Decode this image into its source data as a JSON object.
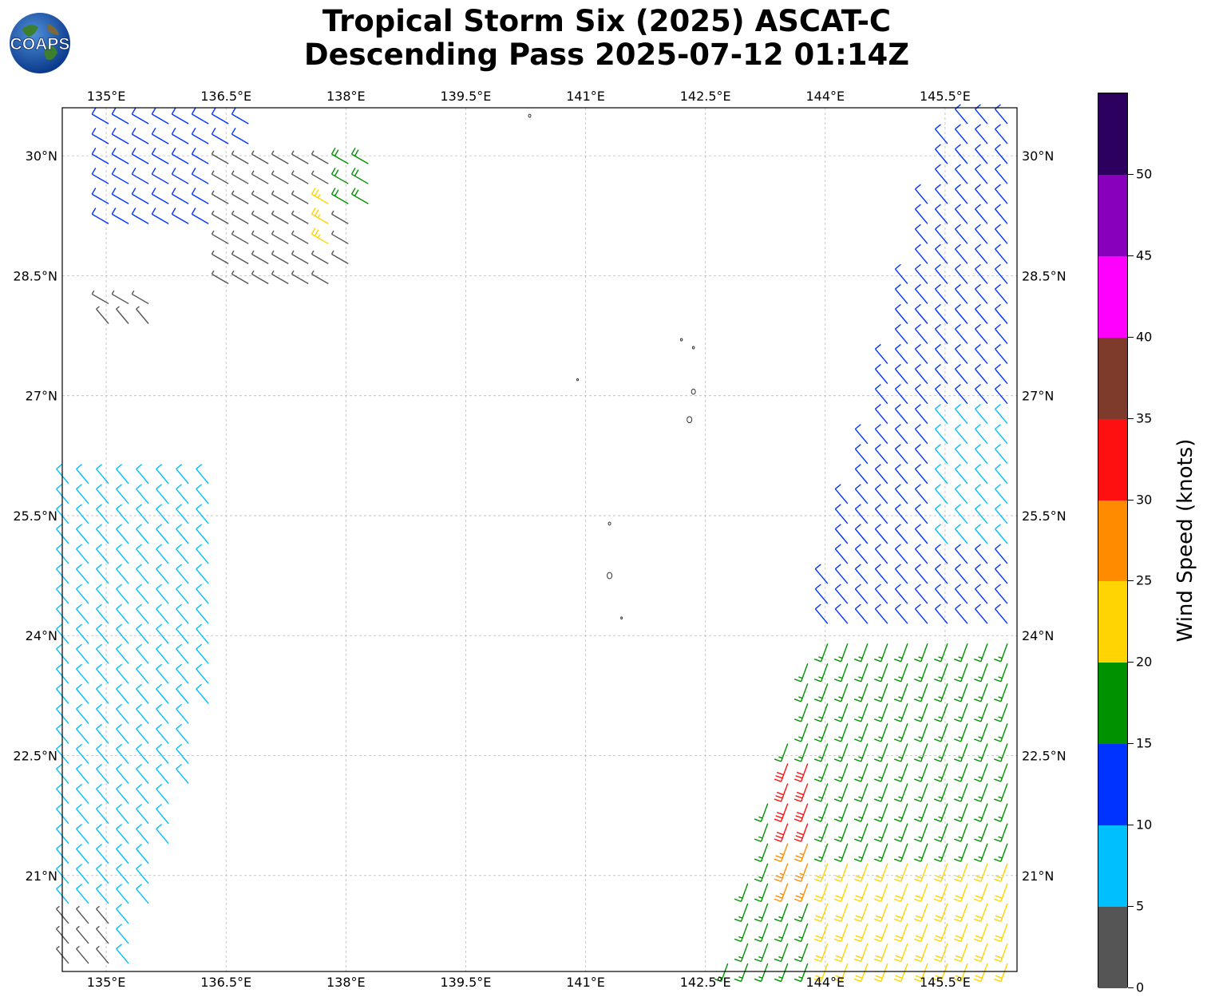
{
  "title": {
    "line1": "Tropical Storm Six (2025) ASCAT-C",
    "line2": "Descending Pass 2025-07-12 01:14Z"
  },
  "logo": {
    "text": "COAPS",
    "icon": "globe-logo-icon"
  },
  "map": {
    "lon_labels": [
      "135°E",
      "136.5°E",
      "138°E",
      "139.5°E",
      "141°E",
      "142.5°E",
      "144°E",
      "145.5°E"
    ],
    "lat_labels": [
      "30°N",
      "28.5°N",
      "27°N",
      "25.5°N",
      "24°N",
      "22.5°N",
      "21°N"
    ],
    "lon_values": [
      135,
      136.5,
      138,
      139.5,
      141,
      142.5,
      144,
      145.5
    ],
    "lat_values": [
      30,
      28.5,
      27,
      25.5,
      24,
      22.5,
      21
    ],
    "extent": {
      "lon_min": 134.45,
      "lon_max": 146.4,
      "lat_min": 19.8,
      "lat_max": 30.6
    },
    "gridlines": true,
    "islands": "Bonin / Ogasawara Islands"
  },
  "colorbar": {
    "title": "Wind Speed (knots)",
    "ticks": [
      "0",
      "5",
      "10",
      "15",
      "20",
      "25",
      "30",
      "35",
      "40",
      "45",
      "50"
    ],
    "bins": [
      {
        "min": 0,
        "max": 5,
        "color": "#555555"
      },
      {
        "min": 5,
        "max": 10,
        "color": "#00bfff"
      },
      {
        "min": 10,
        "max": 15,
        "color": "#0033ff"
      },
      {
        "min": 15,
        "max": 20,
        "color": "#009100"
      },
      {
        "min": 20,
        "max": 25,
        "color": "#ffd400"
      },
      {
        "min": 25,
        "max": 30,
        "color": "#ff8c00"
      },
      {
        "min": 30,
        "max": 35,
        "color": "#ff1010"
      },
      {
        "min": 35,
        "max": 40,
        "color": "#7e3a2a"
      },
      {
        "min": 40,
        "max": 45,
        "color": "#ff00ff"
      },
      {
        "min": 45,
        "max": 50,
        "color": "#8800bb"
      },
      {
        "min": 50,
        "max": 55,
        "color": "#2b005f"
      }
    ]
  },
  "chart_data": {
    "type": "scatter",
    "description_of_marks": "wind barbs from ASCAT-C scatterometer swaths",
    "swaths": [
      {
        "name": "west swath",
        "lon_range_at_south": [
          134.45,
          135.3
        ],
        "lon_range_at_north": [
          134.45,
          138.7
        ],
        "speed_regions": [
          {
            "lat": [
              29.0,
              30.6
            ],
            "lon": [
              135.0,
              137.0
            ],
            "speed_kt": 12
          },
          {
            "lat": [
              28.3,
              30.0
            ],
            "lon": [
              136.5,
              138.5
            ],
            "speed_kt": 4
          },
          {
            "lat": [
              29.3,
              30.1
            ],
            "lon": [
              137.8,
              138.3
            ],
            "speed_kt": 18
          },
          {
            "lat": [
              28.8,
              29.5
            ],
            "lon": [
              137.6,
              137.9
            ],
            "speed_kt": 24
          },
          {
            "lat": [
              27.7,
              28.4
            ],
            "lon": [
              134.9,
              135.7
            ],
            "speed_kt": 4
          },
          {
            "lat": [
              22.5,
              23.6
            ],
            "lon": [
              134.8,
              136.2
            ],
            "speed_kt": 12
          },
          {
            "lat": [
              19.8,
              26.0
            ],
            "lon": [
              134.45,
              136.5
            ],
            "speed_kt": 8
          },
          {
            "lat": [
              19.8,
              20.6
            ],
            "lon": [
              134.45,
              135.2
            ],
            "speed_kt": 3
          }
        ]
      },
      {
        "name": "east swath",
        "lon_range_at_south": [
          142.7,
          146.4
        ],
        "lon_range_at_north": [
          145.6,
          146.4
        ],
        "speed_regions": [
          {
            "lat": [
              24.0,
              30.6
            ],
            "lon": [
              143.5,
              146.4
            ],
            "speed_kt": 12
          },
          {
            "lat": [
              25.0,
              26.7
            ],
            "lon": [
              145.3,
              146.4
            ],
            "speed_kt": 8
          },
          {
            "lat": [
              19.8,
              24.0
            ],
            "lon": [
              142.7,
              146.4
            ],
            "speed_kt": 17
          },
          {
            "lat": [
              21.0,
              22.5
            ],
            "lon": [
              143.4,
              143.9
            ],
            "speed_kt": 31
          },
          {
            "lat": [
              20.8,
              21.5
            ],
            "lon": [
              143.4,
              143.8
            ],
            "speed_kt": 27
          },
          {
            "lat": [
              19.8,
              21.3
            ],
            "lon": [
              143.8,
              146.4
            ],
            "speed_kt": 22
          }
        ]
      }
    ],
    "xlabel": "",
    "ylabel": "",
    "xlim": [
      134.45,
      146.4
    ],
    "ylim": [
      19.8,
      30.6
    ]
  }
}
